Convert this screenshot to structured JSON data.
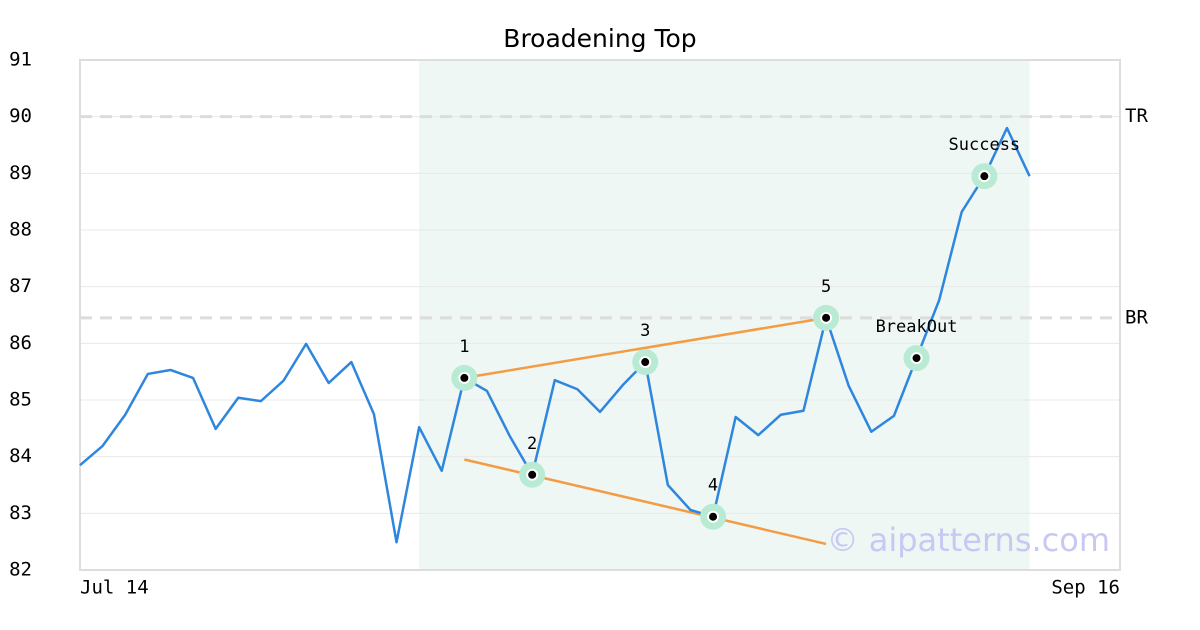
{
  "chart_data": {
    "type": "line",
    "title": "Broadening Top",
    "x": [
      0,
      1,
      2,
      3,
      4,
      5,
      6,
      7,
      8,
      9,
      10,
      11,
      12,
      13,
      14,
      15,
      16,
      17,
      18,
      19,
      20,
      21,
      22,
      23,
      24,
      25,
      26,
      27,
      28,
      29,
      30,
      31,
      32,
      33,
      34,
      35,
      36,
      37,
      38,
      39,
      40,
      41,
      42
    ],
    "values": [
      83.85,
      84.19,
      84.74,
      85.46,
      85.53,
      85.39,
      84.49,
      85.04,
      84.98,
      85.34,
      85.99,
      85.3,
      85.67,
      84.75,
      82.49,
      84.52,
      83.75,
      85.39,
      85.16,
      84.37,
      83.68,
      85.35,
      85.19,
      84.79,
      85.26,
      85.67,
      83.5,
      83.06,
      82.94,
      84.7,
      84.38,
      84.74,
      84.81,
      86.45,
      85.25,
      84.44,
      84.72,
      85.74,
      86.76,
      88.32,
      88.95,
      89.8,
      88.95
    ],
    "color": "#2e86de",
    "xlim": [
      0,
      46
    ],
    "xticks": [
      {
        "value": 0,
        "label": "Jul 14"
      },
      {
        "value": 46,
        "label": "Sep 16"
      }
    ],
    "ylim": [
      82,
      91
    ],
    "yticks": [
      82,
      83,
      84,
      85,
      86,
      87,
      88,
      89,
      90,
      91
    ],
    "grid": true,
    "shaded_region": {
      "xlim": [
        15,
        42
      ],
      "color": "#eef7f3"
    },
    "levels": [
      {
        "label": "TR",
        "value": 90
      },
      {
        "label": "BR",
        "value": 86.45
      }
    ],
    "trend_lines": [
      {
        "x": [
          17,
          33
        ],
        "y": [
          85.39,
          86.45
        ],
        "color": "#f39c45"
      },
      {
        "x": [
          17,
          33
        ],
        "y": [
          83.95,
          82.46
        ],
        "color": "#f39c45"
      }
    ],
    "pattern_points": [
      {
        "label": "1",
        "x": 17,
        "y": 85.39
      },
      {
        "label": "2",
        "x": 20,
        "y": 83.68
      },
      {
        "label": "3",
        "x": 25,
        "y": 85.67
      },
      {
        "label": "4",
        "x": 28,
        "y": 82.94
      },
      {
        "label": "5",
        "x": 33,
        "y": 86.45
      },
      {
        "label": "BreakOut",
        "x": 37,
        "y": 85.74
      },
      {
        "label": "Success",
        "x": 40,
        "y": 88.95
      }
    ],
    "watermark": "© aipatterns.com"
  }
}
